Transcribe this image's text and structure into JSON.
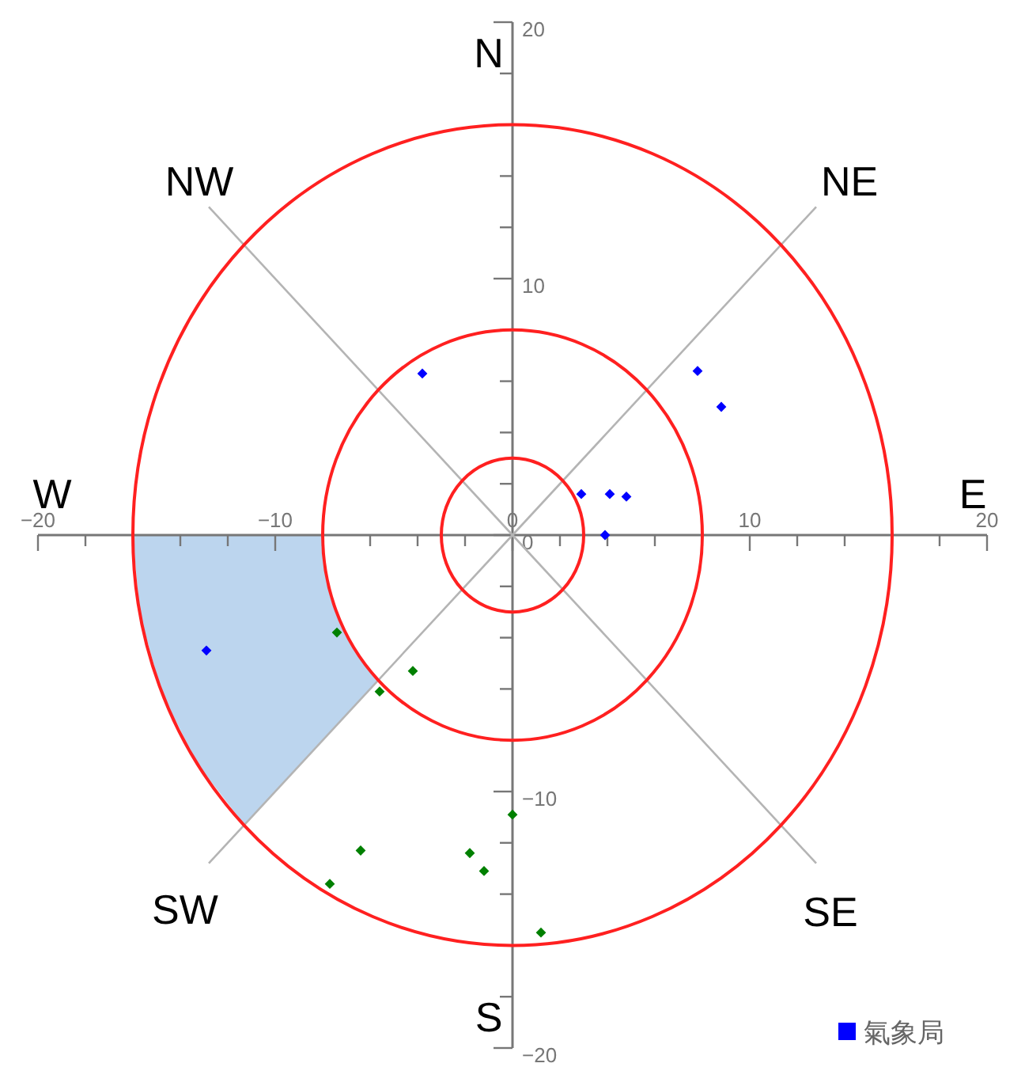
{
  "chart_data": {
    "type": "scatter",
    "xlim": [
      -20,
      20
    ],
    "ylim": [
      -20,
      20
    ],
    "xticks": [
      -20,
      {
        "value": -18,
        "label": null
      },
      {
        "value": -16,
        "label": null
      },
      {
        "value": -14,
        "label": null
      },
      {
        "value": -12,
        "label": null
      },
      -10,
      {
        "value": -8,
        "label": null
      },
      {
        "value": -6,
        "label": null
      },
      {
        "value": -4,
        "label": null
      },
      {
        "value": -2,
        "label": null
      },
      0,
      {
        "value": 2,
        "label": null
      },
      {
        "value": 4,
        "label": null
      },
      {
        "value": 6,
        "label": null
      },
      {
        "value": 8,
        "label": null
      },
      10,
      {
        "value": 12,
        "label": null
      },
      {
        "value": 14,
        "label": null
      },
      {
        "value": 16,
        "label": null
      },
      {
        "value": 18,
        "label": null
      },
      20
    ],
    "yticks": [
      -20,
      {
        "value": -18,
        "label": null
      },
      {
        "value": -16,
        "label": null
      },
      {
        "value": -14,
        "label": null
      },
      {
        "value": -12,
        "label": null
      },
      -10,
      {
        "value": -8,
        "label": null
      },
      {
        "value": -6,
        "label": null
      },
      {
        "value": -4,
        "label": null
      },
      {
        "value": -2,
        "label": null
      },
      0,
      {
        "value": 2,
        "label": null
      },
      {
        "value": 4,
        "label": null
      },
      {
        "value": 6,
        "label": null
      },
      {
        "value": 8,
        "label": null
      },
      10,
      {
        "value": 12,
        "label": null
      },
      {
        "value": 14,
        "label": null
      },
      {
        "value": 16,
        "label": null
      },
      {
        "value": 18,
        "label": null
      },
      20
    ],
    "legend": "bottom right",
    "series": [
      {
        "type": "area",
        "color": "#bcd5ee",
        "x": [
          -16,
          -15.7,
          -14.8,
          -13.3,
          -11.3,
          -5.66,
          -6.65,
          -7.39,
          -7.85,
          -8,
          -16
        ],
        "values": [
          0,
          -3.1,
          -6.1,
          -8.9,
          -11.3,
          -5.66,
          -4.44,
          -3.06,
          -1.56,
          0,
          0
        ]
      },
      {
        "type": "line",
        "color": "#b4b4b4",
        "x": [
          0,
          12.8
        ],
        "values": [
          0,
          12.8
        ]
      },
      {
        "type": "line",
        "color": "#b4b4b4",
        "x": [
          0,
          -12.8
        ],
        "values": [
          0,
          12.8
        ]
      },
      {
        "type": "line",
        "color": "#b4b4b4",
        "x": [
          0,
          -12.8
        ],
        "values": [
          0,
          -12.8
        ]
      },
      {
        "type": "line",
        "color": "#b4b4b4",
        "x": [
          0,
          12.8
        ],
        "values": [
          0,
          -12.8
        ]
      },
      {
        "name": "氣象局",
        "color": "#0000ff",
        "marker": "diamond",
        "x": [
          -3.8,
          7.8,
          8.8,
          2.9,
          4.1,
          4.8,
          3.9,
          -12.9
        ],
        "values": [
          6.3,
          6.4,
          5.0,
          1.6,
          1.6,
          1.5,
          0.0,
          -4.5
        ]
      },
      {
        "color": "#008000",
        "marker": "diamond",
        "x": [
          -7.4,
          -4.2,
          -5.6,
          0.0,
          -6.4,
          -1.8,
          -1.2,
          -7.7,
          1.2
        ],
        "values": [
          -3.8,
          -5.3,
          -6.1,
          -10.9,
          -12.3,
          -12.4,
          -13.1,
          -13.6,
          -15.5
        ]
      }
    ],
    "annotations": [
      "N",
      "NE",
      "E",
      "SE",
      "S",
      "SW",
      "W",
      "NW"
    ]
  }
}
